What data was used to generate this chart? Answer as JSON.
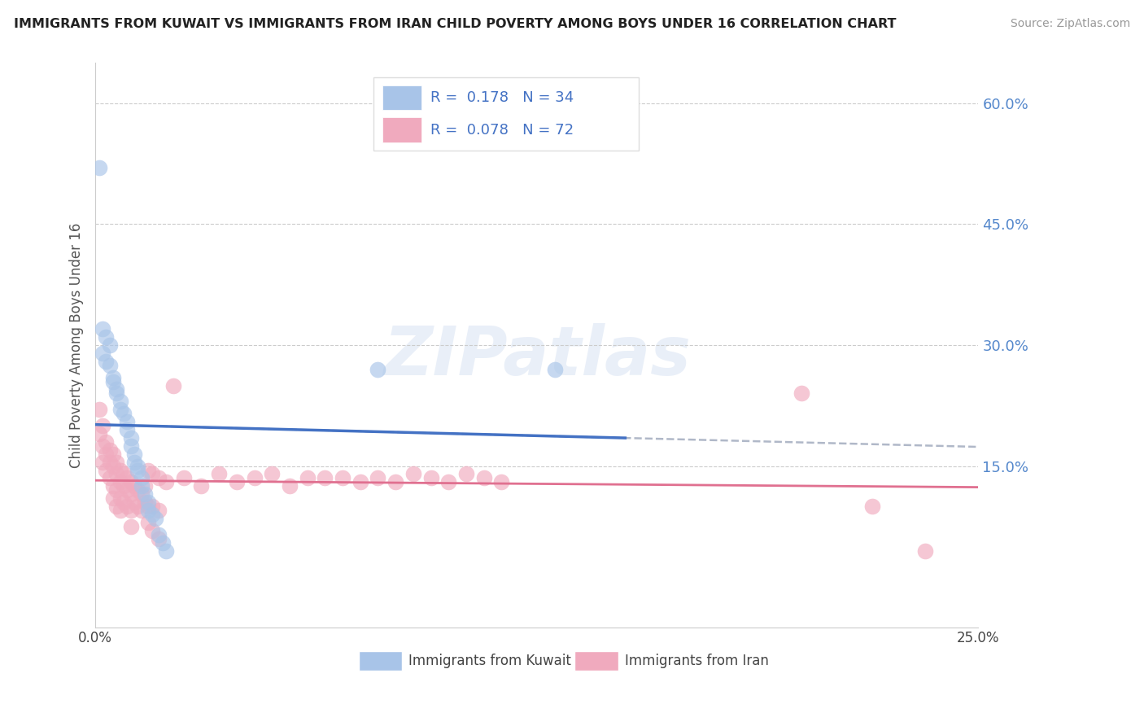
{
  "title": "IMMIGRANTS FROM KUWAIT VS IMMIGRANTS FROM IRAN CHILD POVERTY AMONG BOYS UNDER 16 CORRELATION CHART",
  "source": "Source: ZipAtlas.com",
  "ylabel": "Child Poverty Among Boys Under 16",
  "watermark": "ZIPatlas",
  "legend_label_kuwait": "Immigrants from Kuwait",
  "legend_label_iran": "Immigrants from Iran",
  "kuwait_color": "#a8c4e8",
  "iran_color": "#f0aabe",
  "kuwait_line_color": "#4472c4",
  "iran_line_color": "#e07090",
  "trendline_dashed_color": "#b0b8c8",
  "xlim": [
    0.0,
    0.25
  ],
  "ylim": [
    -0.05,
    0.65
  ],
  "background_color": "#ffffff",
  "legend_text_color": "#4472c4",
  "kuwait_scatter": [
    [
      0.001,
      0.52
    ],
    [
      0.002,
      0.32
    ],
    [
      0.002,
      0.29
    ],
    [
      0.003,
      0.31
    ],
    [
      0.003,
      0.28
    ],
    [
      0.004,
      0.3
    ],
    [
      0.004,
      0.275
    ],
    [
      0.005,
      0.26
    ],
    [
      0.005,
      0.255
    ],
    [
      0.006,
      0.245
    ],
    [
      0.006,
      0.24
    ],
    [
      0.007,
      0.23
    ],
    [
      0.007,
      0.22
    ],
    [
      0.008,
      0.215
    ],
    [
      0.009,
      0.205
    ],
    [
      0.009,
      0.195
    ],
    [
      0.01,
      0.185
    ],
    [
      0.01,
      0.175
    ],
    [
      0.011,
      0.165
    ],
    [
      0.011,
      0.155
    ],
    [
      0.012,
      0.15
    ],
    [
      0.012,
      0.145
    ],
    [
      0.013,
      0.135
    ],
    [
      0.013,
      0.125
    ],
    [
      0.014,
      0.115
    ],
    [
      0.015,
      0.105
    ],
    [
      0.015,
      0.095
    ],
    [
      0.016,
      0.09
    ],
    [
      0.017,
      0.085
    ],
    [
      0.018,
      0.065
    ],
    [
      0.019,
      0.055
    ],
    [
      0.02,
      0.045
    ],
    [
      0.08,
      0.27
    ],
    [
      0.13,
      0.27
    ]
  ],
  "iran_scatter": [
    [
      0.001,
      0.22
    ],
    [
      0.001,
      0.19
    ],
    [
      0.002,
      0.2
    ],
    [
      0.002,
      0.175
    ],
    [
      0.002,
      0.155
    ],
    [
      0.003,
      0.18
    ],
    [
      0.003,
      0.165
    ],
    [
      0.003,
      0.145
    ],
    [
      0.004,
      0.17
    ],
    [
      0.004,
      0.155
    ],
    [
      0.004,
      0.135
    ],
    [
      0.005,
      0.165
    ],
    [
      0.005,
      0.15
    ],
    [
      0.005,
      0.125
    ],
    [
      0.005,
      0.11
    ],
    [
      0.006,
      0.155
    ],
    [
      0.006,
      0.14
    ],
    [
      0.006,
      0.12
    ],
    [
      0.006,
      0.1
    ],
    [
      0.007,
      0.145
    ],
    [
      0.007,
      0.13
    ],
    [
      0.007,
      0.11
    ],
    [
      0.007,
      0.095
    ],
    [
      0.008,
      0.14
    ],
    [
      0.008,
      0.125
    ],
    [
      0.008,
      0.105
    ],
    [
      0.009,
      0.135
    ],
    [
      0.009,
      0.12
    ],
    [
      0.009,
      0.1
    ],
    [
      0.01,
      0.13
    ],
    [
      0.01,
      0.115
    ],
    [
      0.01,
      0.095
    ],
    [
      0.01,
      0.075
    ],
    [
      0.011,
      0.125
    ],
    [
      0.011,
      0.105
    ],
    [
      0.012,
      0.12
    ],
    [
      0.012,
      0.1
    ],
    [
      0.013,
      0.115
    ],
    [
      0.013,
      0.095
    ],
    [
      0.014,
      0.125
    ],
    [
      0.014,
      0.105
    ],
    [
      0.015,
      0.145
    ],
    [
      0.015,
      0.1
    ],
    [
      0.015,
      0.08
    ],
    [
      0.016,
      0.14
    ],
    [
      0.016,
      0.1
    ],
    [
      0.016,
      0.07
    ],
    [
      0.018,
      0.135
    ],
    [
      0.018,
      0.095
    ],
    [
      0.018,
      0.06
    ],
    [
      0.02,
      0.13
    ],
    [
      0.022,
      0.25
    ],
    [
      0.025,
      0.135
    ],
    [
      0.03,
      0.125
    ],
    [
      0.035,
      0.14
    ],
    [
      0.04,
      0.13
    ],
    [
      0.045,
      0.135
    ],
    [
      0.05,
      0.14
    ],
    [
      0.055,
      0.125
    ],
    [
      0.06,
      0.135
    ],
    [
      0.065,
      0.135
    ],
    [
      0.07,
      0.135
    ],
    [
      0.075,
      0.13
    ],
    [
      0.08,
      0.135
    ],
    [
      0.085,
      0.13
    ],
    [
      0.09,
      0.14
    ],
    [
      0.095,
      0.135
    ],
    [
      0.1,
      0.13
    ],
    [
      0.105,
      0.14
    ],
    [
      0.11,
      0.135
    ],
    [
      0.115,
      0.13
    ],
    [
      0.2,
      0.24
    ],
    [
      0.22,
      0.1
    ],
    [
      0.235,
      0.045
    ]
  ]
}
